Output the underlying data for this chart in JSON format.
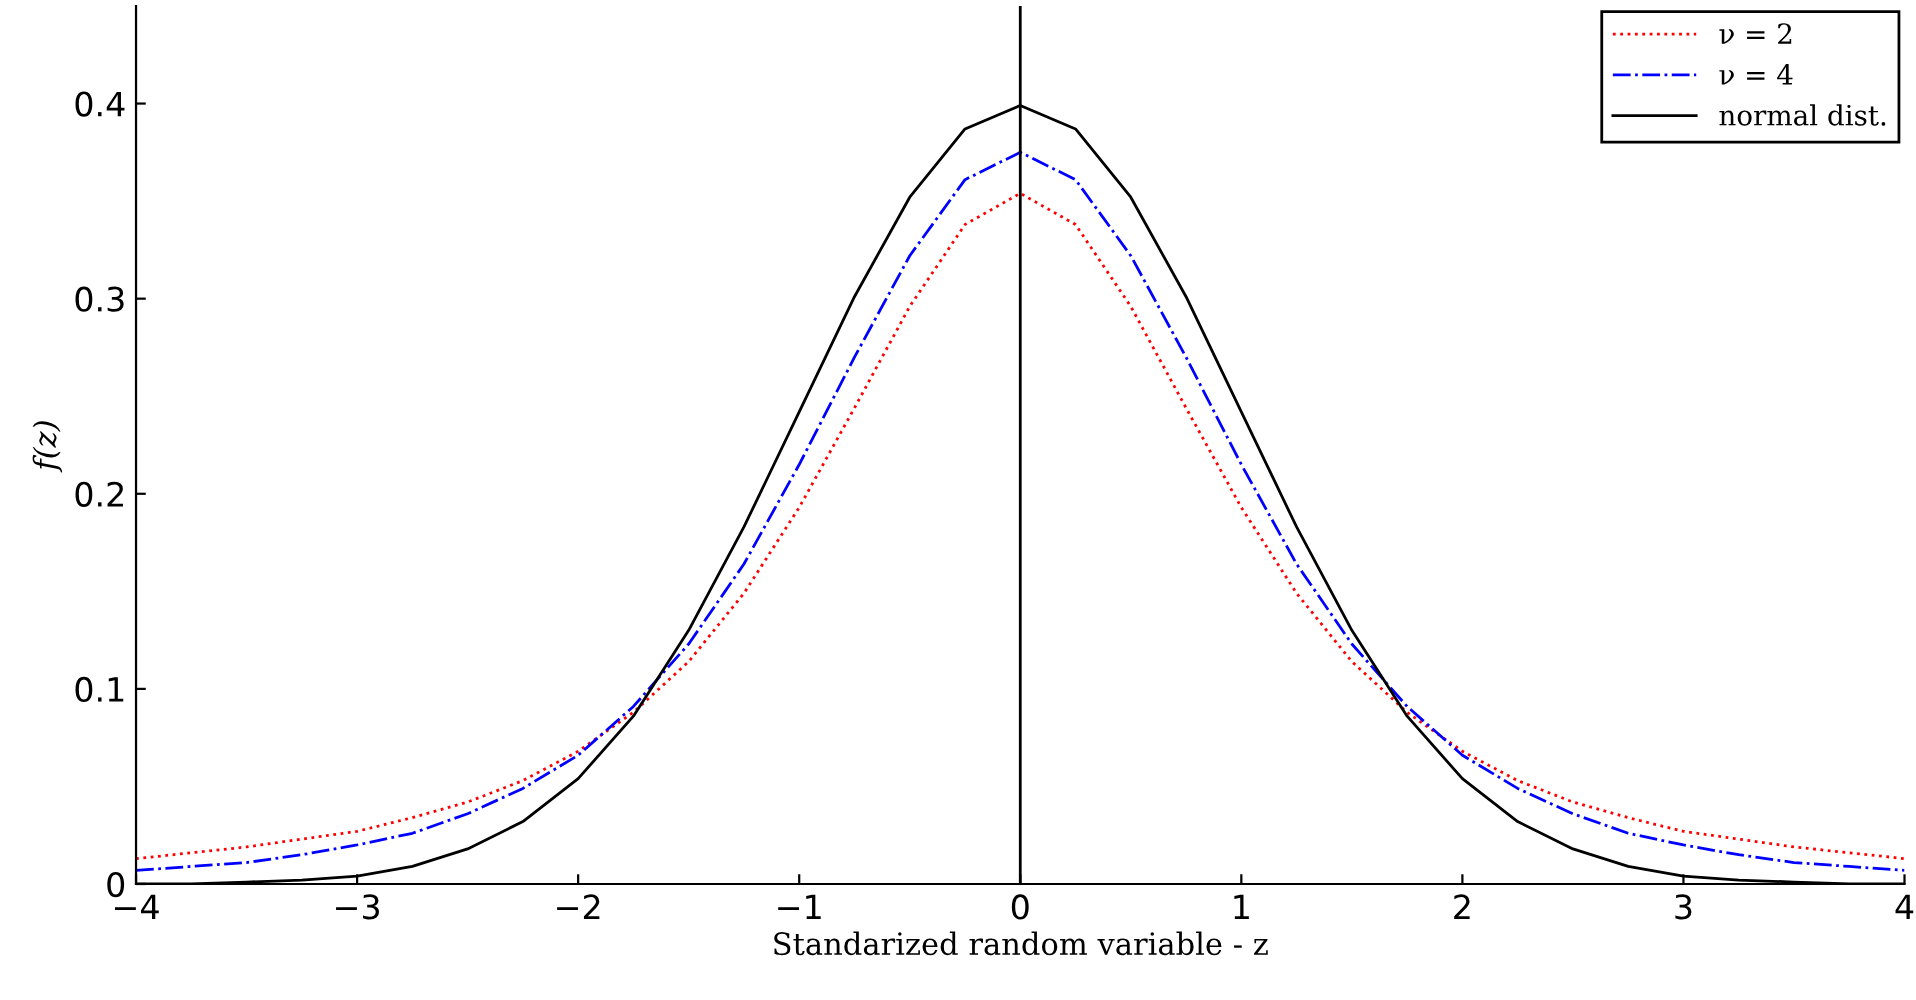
{
  "chart_data": {
    "type": "line",
    "xlabel": "Standarized random variable - z",
    "ylabel": "f(z)",
    "x": [
      -4,
      -3.75,
      -3.5,
      -3.25,
      -3,
      -2.75,
      -2.5,
      -2.25,
      -2,
      -1.75,
      -1.5,
      -1.25,
      -1,
      -0.75,
      -0.5,
      -0.25,
      0,
      0.25,
      0.5,
      0.75,
      1,
      1.25,
      1.5,
      1.75,
      2,
      2.25,
      2.5,
      2.75,
      3,
      3.25,
      3.5,
      3.75,
      4
    ],
    "series": [
      {
        "name": "ν = 2",
        "color": "#ff0000",
        "line_style": "dotted",
        "values": [
          0.013,
          0.016,
          0.019,
          0.023,
          0.027,
          0.034,
          0.042,
          0.053,
          0.068,
          0.088,
          0.114,
          0.149,
          0.193,
          0.244,
          0.296,
          0.338,
          0.354,
          0.338,
          0.296,
          0.244,
          0.193,
          0.149,
          0.114,
          0.088,
          0.068,
          0.053,
          0.042,
          0.034,
          0.027,
          0.023,
          0.019,
          0.016,
          0.013
        ]
      },
      {
        "name": "ν = 4",
        "color": "#0000ff",
        "line_style": "dashdot",
        "values": [
          0.007,
          0.009,
          0.011,
          0.015,
          0.02,
          0.026,
          0.036,
          0.049,
          0.066,
          0.091,
          0.123,
          0.164,
          0.215,
          0.27,
          0.322,
          0.361,
          0.375,
          0.361,
          0.322,
          0.27,
          0.215,
          0.164,
          0.123,
          0.091,
          0.066,
          0.049,
          0.036,
          0.026,
          0.02,
          0.015,
          0.011,
          0.009,
          0.007
        ]
      },
      {
        "name": "normal dist.",
        "color": "#000000",
        "line_style": "solid",
        "values": [
          0.0,
          0.0,
          0.001,
          0.002,
          0.004,
          0.009,
          0.018,
          0.032,
          0.054,
          0.086,
          0.13,
          0.183,
          0.242,
          0.301,
          0.352,
          0.387,
          0.399,
          0.387,
          0.352,
          0.301,
          0.242,
          0.183,
          0.13,
          0.086,
          0.054,
          0.032,
          0.018,
          0.009,
          0.004,
          0.002,
          0.001,
          0.0,
          0.0
        ]
      }
    ],
    "xlim": [
      -4,
      4
    ],
    "xticks": [
      {
        "value": -4,
        "label": "−4"
      },
      {
        "value": -3,
        "label": "−3"
      },
      {
        "value": -2,
        "label": "−2"
      },
      {
        "value": -1,
        "label": "−1"
      },
      0,
      1,
      2,
      3,
      4
    ],
    "ylim": [
      0,
      0.45
    ],
    "yticks": [
      0,
      0.1,
      0.2,
      0.3,
      0.4
    ],
    "ref_lines": [
      {
        "axis": "x",
        "value": 0,
        "color": "#000000",
        "line_style": "solid"
      }
    ],
    "legend": "top right",
    "grid": false,
    "marker": "none"
  }
}
